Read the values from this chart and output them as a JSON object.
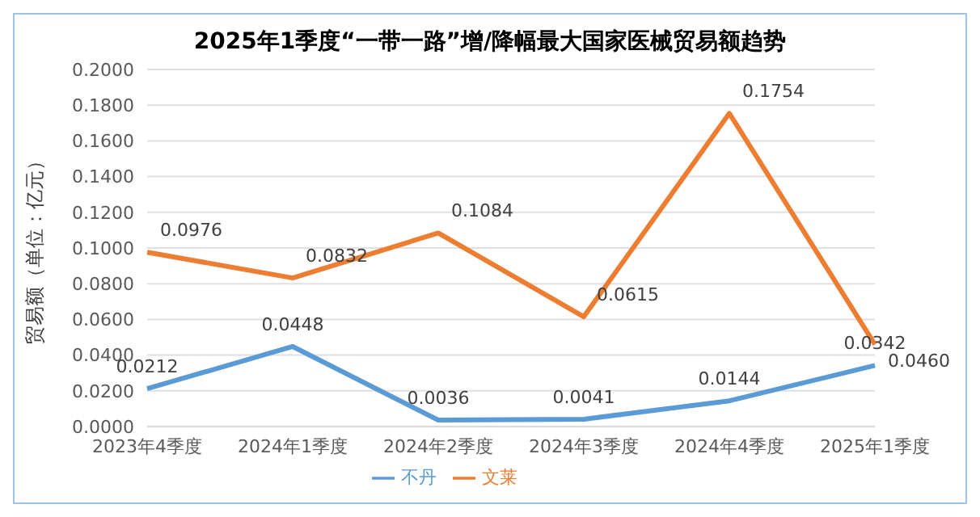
{
  "chart_data": {
    "type": "line",
    "title": "2025年1季度“一带一路”增/降幅最大国家医械贸易额趋势",
    "ylabel": "贸易额（单位：亿元）",
    "categories": [
      "2023年4季度",
      "2024年1季度",
      "2024年2季度",
      "2024年3季度",
      "2024年4季度",
      "2025年1季度"
    ],
    "series": [
      {
        "name": "不丹",
        "color": "#5b9bd5",
        "values": [
          0.0212,
          0.0448,
          0.0036,
          0.0041,
          0.0144,
          0.0342
        ],
        "value_labels": [
          "0.0212",
          "0.0448",
          "0.0036",
          "0.0041",
          "0.0144",
          "0.0342"
        ]
      },
      {
        "name": "文莱",
        "color": "#ed7d31",
        "values": [
          0.0976,
          0.0832,
          0.1084,
          0.0615,
          0.1754,
          0.046
        ],
        "value_labels": [
          "0.0976",
          "0.0832",
          "0.1084",
          "0.0615",
          "0.1754",
          "0.0460"
        ]
      }
    ],
    "ylim": [
      0,
      0.2
    ],
    "yticks": [
      {
        "value": 0,
        "label": "0.0000"
      },
      {
        "value": 0.02,
        "label": "0.0200"
      },
      {
        "value": 0.04,
        "label": "0.0400"
      },
      {
        "value": 0.06,
        "label": "0.0600"
      },
      {
        "value": 0.08,
        "label": "0.0800"
      },
      {
        "value": 0.1,
        "label": "0.1000"
      },
      {
        "value": 0.12,
        "label": "0.1200"
      },
      {
        "value": 0.14,
        "label": "0.1400"
      },
      {
        "value": 0.16,
        "label": "0.1600"
      },
      {
        "value": 0.18,
        "label": "0.1800"
      },
      {
        "value": 0.2,
        "label": "0.2000"
      }
    ],
    "grid": "y",
    "legend": "bottom",
    "marker": "none",
    "line_style": "solid"
  }
}
